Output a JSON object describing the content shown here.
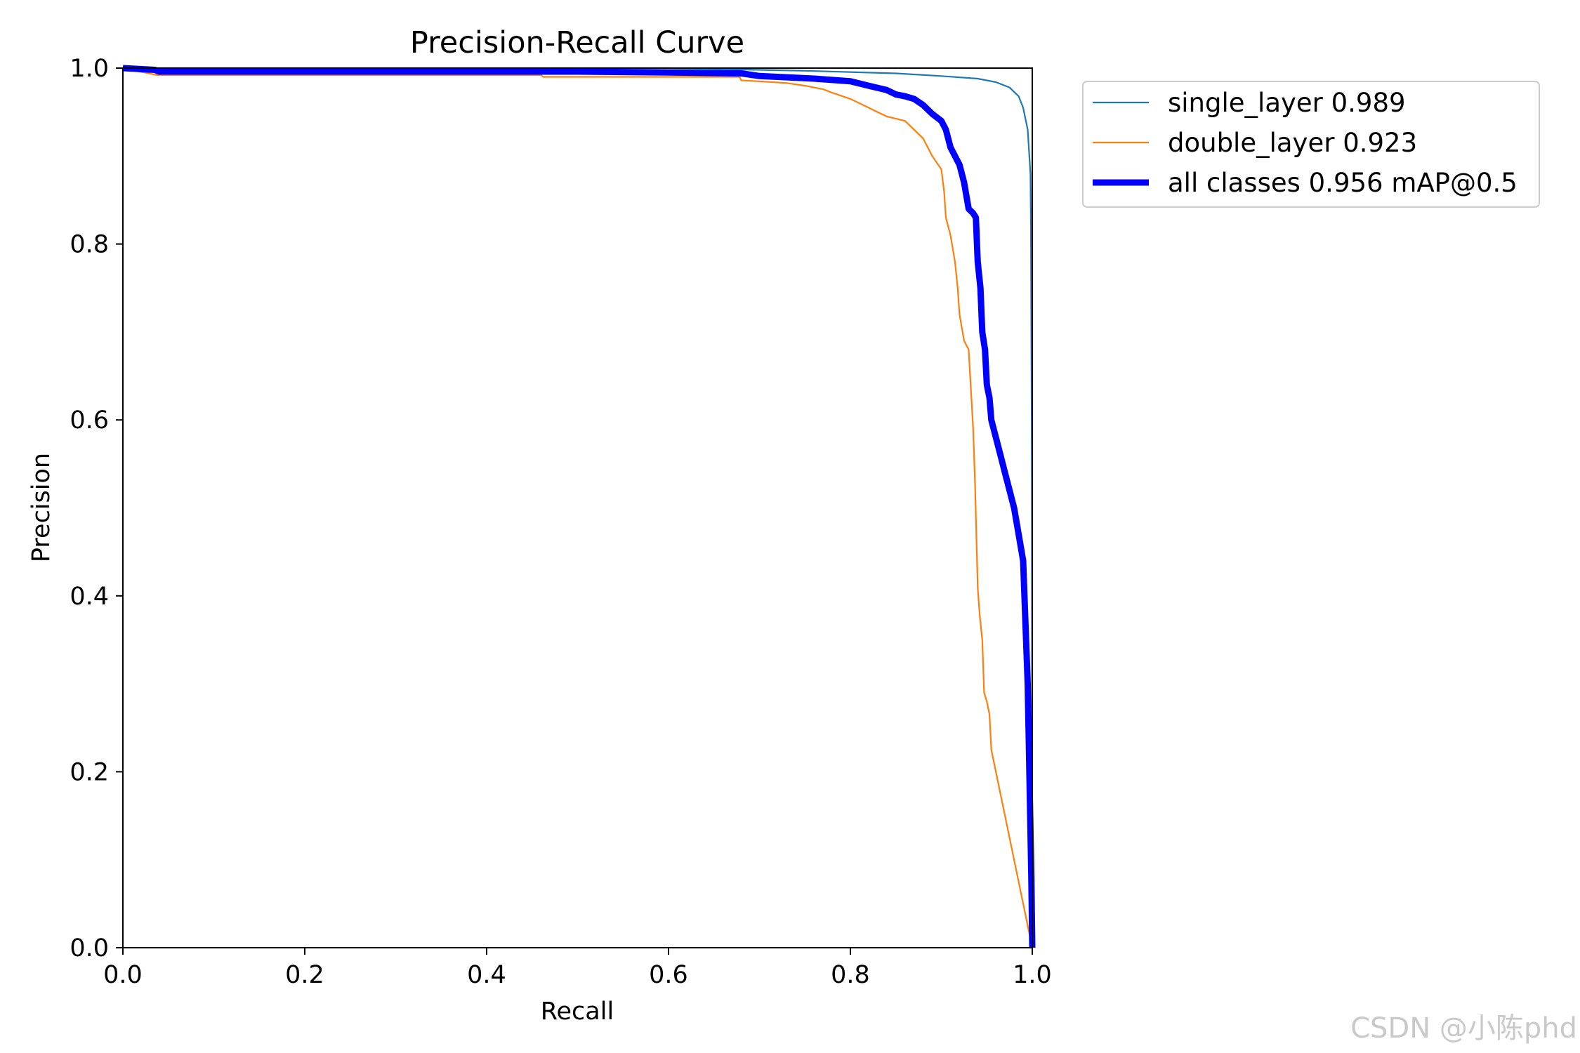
{
  "chart_data": {
    "type": "line",
    "title": "Precision-Recall Curve",
    "xlabel": "Recall",
    "ylabel": "Precision",
    "xlim": [
      0,
      1
    ],
    "ylim": [
      0,
      1
    ],
    "xticks": [
      "0.0",
      "0.2",
      "0.4",
      "0.6",
      "0.8",
      "1.0"
    ],
    "yticks": [
      "0.0",
      "0.2",
      "0.4",
      "0.6",
      "0.8",
      "1.0"
    ],
    "grid": false,
    "legend_position": "outside-top-right",
    "series": [
      {
        "name": "single_layer 0.989",
        "color": "#1f77b4",
        "width": "thin",
        "points": [
          [
            0,
            1.0
          ],
          [
            0.6,
            1.0
          ],
          [
            0.75,
            0.997
          ],
          [
            0.85,
            0.994
          ],
          [
            0.9,
            0.991
          ],
          [
            0.94,
            0.988
          ],
          [
            0.96,
            0.984
          ],
          [
            0.975,
            0.978
          ],
          [
            0.985,
            0.968
          ],
          [
            0.99,
            0.955
          ],
          [
            0.995,
            0.93
          ],
          [
            0.998,
            0.88
          ],
          [
            0.9985,
            0.82
          ],
          [
            0.9995,
            0.55
          ],
          [
            0.9998,
            0.38
          ],
          [
            1.0,
            0.0
          ]
        ]
      },
      {
        "name": "double_layer 0.923",
        "color": "#ff7f0e",
        "width": "thin",
        "points": [
          [
            0,
            1.0
          ],
          [
            0.038,
            0.992
          ],
          [
            0.46,
            0.992
          ],
          [
            0.462,
            0.99
          ],
          [
            0.678,
            0.99
          ],
          [
            0.68,
            0.986
          ],
          [
            0.7,
            0.985
          ],
          [
            0.73,
            0.983
          ],
          [
            0.75,
            0.98
          ],
          [
            0.77,
            0.976
          ],
          [
            0.78,
            0.972
          ],
          [
            0.8,
            0.965
          ],
          [
            0.81,
            0.96
          ],
          [
            0.82,
            0.955
          ],
          [
            0.83,
            0.95
          ],
          [
            0.84,
            0.945
          ],
          [
            0.86,
            0.94
          ],
          [
            0.87,
            0.93
          ],
          [
            0.88,
            0.92
          ],
          [
            0.89,
            0.9
          ],
          [
            0.9,
            0.885
          ],
          [
            0.903,
            0.86
          ],
          [
            0.905,
            0.83
          ],
          [
            0.91,
            0.81
          ],
          [
            0.915,
            0.78
          ],
          [
            0.918,
            0.75
          ],
          [
            0.92,
            0.72
          ],
          [
            0.925,
            0.69
          ],
          [
            0.93,
            0.68
          ],
          [
            0.935,
            0.59
          ],
          [
            0.937,
            0.53
          ],
          [
            0.94,
            0.41
          ],
          [
            0.942,
            0.38
          ],
          [
            0.945,
            0.35
          ],
          [
            0.947,
            0.29
          ],
          [
            0.95,
            0.28
          ],
          [
            0.953,
            0.265
          ],
          [
            0.955,
            0.225
          ],
          [
            1.0,
            0.0
          ]
        ]
      },
      {
        "name": "all classes 0.956 mAP@0.5",
        "color": "#0000ff",
        "width": "thick",
        "points": [
          [
            0,
            1.0
          ],
          [
            0.035,
            0.998
          ],
          [
            0.04,
            0.996
          ],
          [
            0.5,
            0.996
          ],
          [
            0.6,
            0.995
          ],
          [
            0.68,
            0.994
          ],
          [
            0.7,
            0.991
          ],
          [
            0.72,
            0.99
          ],
          [
            0.76,
            0.988
          ],
          [
            0.8,
            0.985
          ],
          [
            0.82,
            0.98
          ],
          [
            0.84,
            0.975
          ],
          [
            0.85,
            0.97
          ],
          [
            0.86,
            0.968
          ],
          [
            0.87,
            0.965
          ],
          [
            0.88,
            0.958
          ],
          [
            0.89,
            0.948
          ],
          [
            0.9,
            0.94
          ],
          [
            0.905,
            0.93
          ],
          [
            0.91,
            0.91
          ],
          [
            0.92,
            0.89
          ],
          [
            0.925,
            0.87
          ],
          [
            0.93,
            0.84
          ],
          [
            0.935,
            0.835
          ],
          [
            0.938,
            0.83
          ],
          [
            0.94,
            0.78
          ],
          [
            0.943,
            0.75
          ],
          [
            0.945,
            0.7
          ],
          [
            0.948,
            0.68
          ],
          [
            0.95,
            0.64
          ],
          [
            0.953,
            0.625
          ],
          [
            0.955,
            0.6
          ],
          [
            0.96,
            0.58
          ],
          [
            0.965,
            0.56
          ],
          [
            0.97,
            0.54
          ],
          [
            0.975,
            0.52
          ],
          [
            0.98,
            0.5
          ],
          [
            0.985,
            0.47
          ],
          [
            0.99,
            0.44
          ],
          [
            0.995,
            0.3
          ],
          [
            0.999,
            0.08
          ],
          [
            1.0,
            0.0
          ]
        ]
      }
    ]
  },
  "watermark": "CSDN @小陈phd"
}
